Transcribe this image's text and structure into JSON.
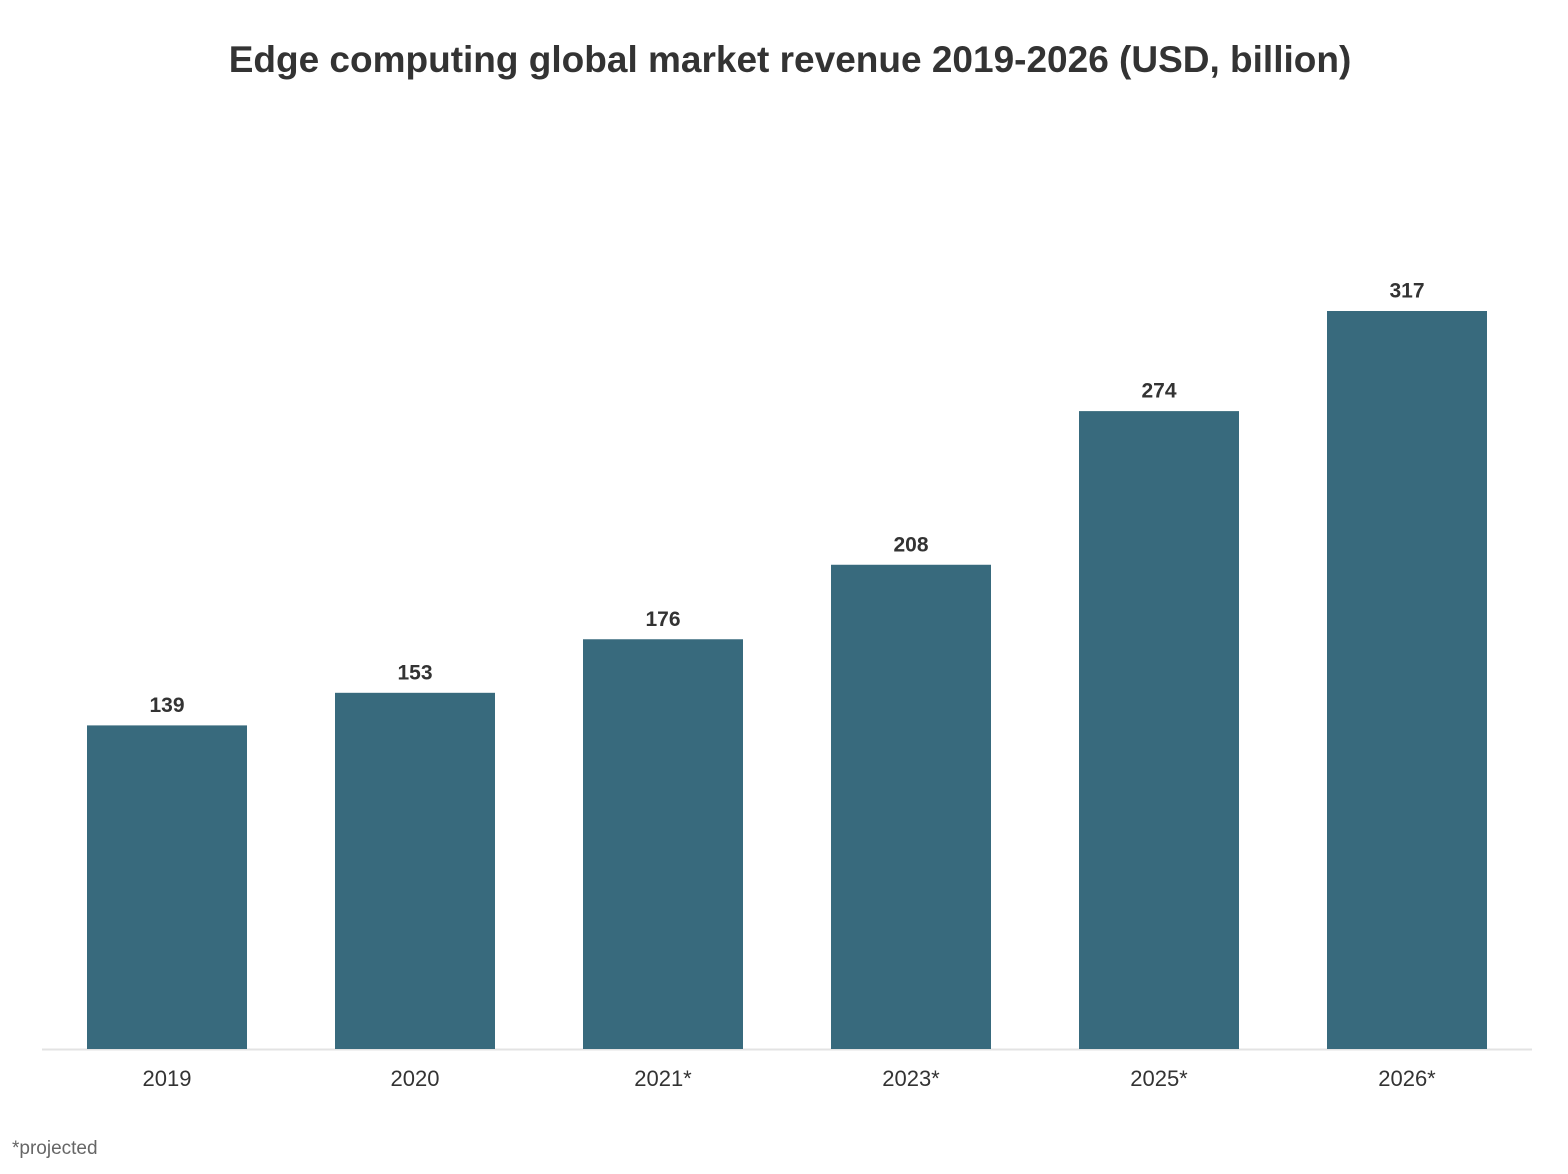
{
  "chart_data": {
    "type": "bar",
    "title": "Edge computing global market revenue 2019-2026 (USD, billion)",
    "categories": [
      "2019",
      "2020",
      "2021*",
      "2023*",
      "2025*",
      "2026*"
    ],
    "values": [
      139,
      153,
      176,
      208,
      274,
      317
    ],
    "color": "#386a7d",
    "note": "*projected"
  }
}
